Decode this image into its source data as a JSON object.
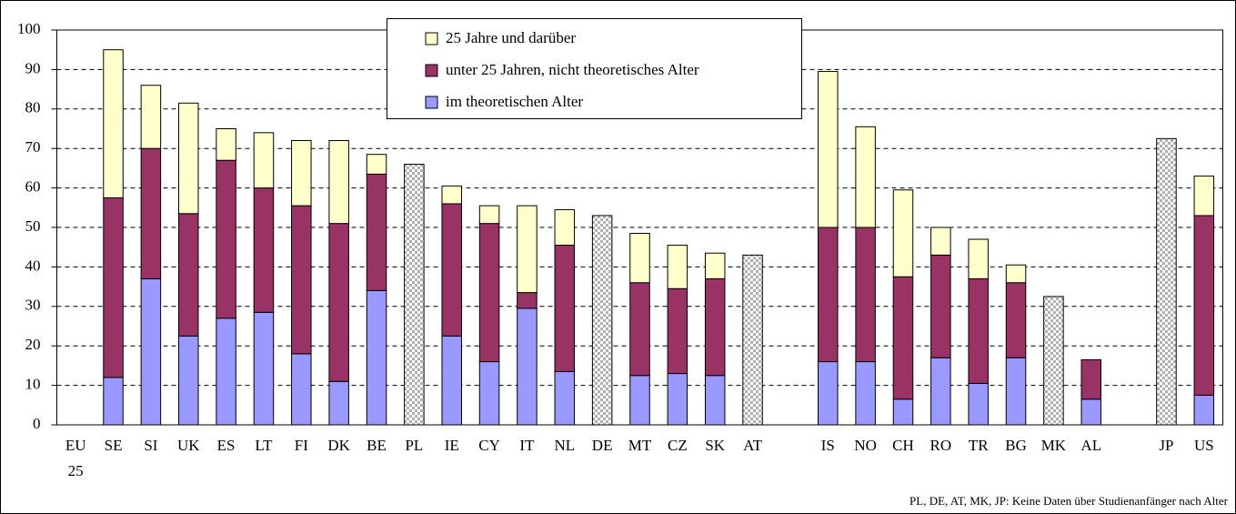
{
  "chart_data": {
    "type": "stacked_bar",
    "categories": [
      "EU 25",
      "SE",
      "SI",
      "UK",
      "ES",
      "LT",
      "FI",
      "DK",
      "BE",
      "PL",
      "IE",
      "CY",
      "IT",
      "NL",
      "DE",
      "MT",
      "CZ",
      "SK",
      "AT",
      null,
      "IS",
      "NO",
      "CH",
      "RO",
      "TR",
      "BG",
      "MK",
      "AL",
      null,
      "JP",
      "US"
    ],
    "series": [
      {
        "name": "im theoretischen Alter",
        "color": "#9999ff",
        "values": [
          null,
          12,
          37,
          22.5,
          27,
          28.5,
          18,
          11,
          34,
          null,
          22.5,
          16,
          29.5,
          13.5,
          null,
          12.5,
          13,
          12.5,
          null,
          null,
          16,
          16,
          6.5,
          17,
          10.5,
          17,
          null,
          6.5,
          null,
          null,
          7.5
        ]
      },
      {
        "name": "unter 25 Jahren, nicht theoretisches Alter",
        "color": "#993366",
        "values": [
          null,
          45.5,
          33,
          31,
          40,
          31.5,
          37.5,
          40,
          29.5,
          null,
          33.5,
          35,
          4,
          32,
          null,
          23.5,
          21.5,
          24.5,
          null,
          null,
          34,
          34,
          31,
          26,
          26.5,
          19,
          null,
          10,
          null,
          null,
          45.5
        ]
      },
      {
        "name": "25 Jahre und darüber",
        "color": "#ffffcc",
        "values": [
          null,
          37.5,
          16,
          28,
          8,
          14,
          16.5,
          21,
          5,
          null,
          4.5,
          4.5,
          22,
          9,
          null,
          12.5,
          11,
          6.5,
          null,
          null,
          39.5,
          25.5,
          22,
          7,
          10,
          4.5,
          null,
          null,
          null,
          null,
          10
        ]
      }
    ],
    "total_only_values": [
      null,
      null,
      null,
      null,
      null,
      null,
      null,
      null,
      null,
      66,
      null,
      null,
      null,
      null,
      53,
      null,
      null,
      null,
      43,
      null,
      null,
      null,
      null,
      null,
      null,
      null,
      32.5,
      null,
      null,
      72.5,
      null
    ],
    "ylim": [
      0,
      100
    ],
    "yticks": [
      0,
      10,
      20,
      30,
      40,
      50,
      60,
      70,
      80,
      90,
      100
    ],
    "grid": true,
    "note": "PL, DE, AT, MK, JP: Keine Daten über Studienanfänger nach Alter"
  }
}
